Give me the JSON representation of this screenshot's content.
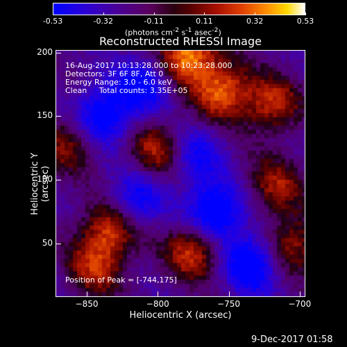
{
  "colorbar": {
    "ticks": [
      "-0.53",
      "-0.32",
      "-0.11",
      "0.11",
      "0.32",
      "0.53"
    ],
    "units_html": "(photons cm<sup>-2</sup> s<sup>-1</sup> asec<sup>-2</sup>)"
  },
  "chart_data": {
    "type": "heatmap",
    "title": "Reconstructed RHESSI Image",
    "xlabel": "Heliocentric X (arcsec)",
    "ylabel": "Heliocentric Y (arcsec)",
    "xlim": [
      -872,
      -696
    ],
    "ylim": [
      8,
      202
    ],
    "xticks": [
      -850,
      -800,
      -750,
      -700
    ],
    "yticks": [
      50,
      100,
      150,
      200
    ],
    "zlim": [
      -0.53,
      0.53
    ],
    "colormap": "blue-purple-red-yellow-white",
    "sources": [
      {
        "x": -780,
        "y": 198,
        "value": 0.53
      },
      {
        "x": -755,
        "y": 170,
        "value": 0.45
      },
      {
        "x": -720,
        "y": 160,
        "value": 0.35
      },
      {
        "x": -862,
        "y": 130,
        "value": 0.3
      },
      {
        "x": -800,
        "y": 125,
        "value": 0.35
      },
      {
        "x": -718,
        "y": 95,
        "value": 0.3
      },
      {
        "x": -835,
        "y": 60,
        "value": 0.4
      },
      {
        "x": -775,
        "y": 45,
        "value": 0.4
      },
      {
        "x": -705,
        "y": 50,
        "value": 0.32
      },
      {
        "x": -845,
        "y": 30,
        "value": 0.3
      },
      {
        "x": -840,
        "y": 150,
        "value": -0.45
      },
      {
        "x": -775,
        "y": 120,
        "value": -0.3
      },
      {
        "x": -760,
        "y": 75,
        "value": -0.5
      },
      {
        "x": -735,
        "y": 35,
        "value": -0.45
      },
      {
        "x": -815,
        "y": 85,
        "value": -0.3
      },
      {
        "x": -810,
        "y": 175,
        "value": -0.35
      }
    ]
  },
  "info": {
    "time": "16-Aug-2017 10:13:28.000 to 10:23:28.000",
    "detectors": "Detectors: 3F 6F 8F, Att 0",
    "energy": "Energy Range: 3.0 - 6.0 keV",
    "clean": "Clean     Total counts: 3.35E+05",
    "peak": "Position of Peak = [-744,175]"
  },
  "footer": {
    "date": "9-Dec-2017 01:58"
  }
}
